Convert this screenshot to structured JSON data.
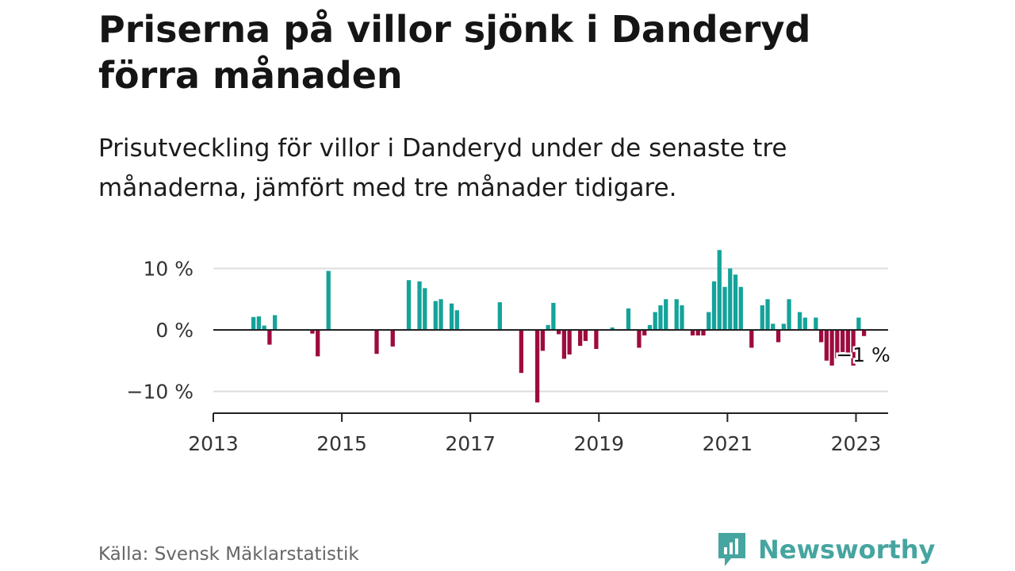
{
  "header": {
    "title": "Priserna på villor sjönk i Danderyd förra månaden",
    "subtitle": "Prisutveckling för villor i Danderyd under de senaste tre månaderna, jämfört med tre månader tidigare."
  },
  "footer": {
    "source": "Källa: Svensk Mäklarstatistik",
    "brand": "Newsworthy",
    "brand_icon": "chart-bubble-icon"
  },
  "colors": {
    "positive": "#14a39a",
    "negative": "#9e0b3e",
    "grid": "#dddddd",
    "axis": "#222222",
    "brand": "#46a5a0"
  },
  "chart_data": {
    "type": "bar",
    "title": "",
    "xlabel": "",
    "ylabel": "",
    "x_unit": "month",
    "ylim": [
      -13,
      13
    ],
    "xlim": [
      "2013-01",
      "2023-07"
    ],
    "yticks": [
      {
        "value": 10,
        "label": "10 %"
      },
      {
        "value": 0,
        "label": "0 %"
      },
      {
        "value": -10,
        "label": "−10 %"
      }
    ],
    "xticks": [
      {
        "x": "2013-01",
        "label": "2013"
      },
      {
        "x": "2015-01",
        "label": "2015"
      },
      {
        "x": "2017-01",
        "label": "2017"
      },
      {
        "x": "2019-01",
        "label": "2019"
      },
      {
        "x": "2021-01",
        "label": "2021"
      },
      {
        "x": "2023-01",
        "label": "2023"
      }
    ],
    "grid": true,
    "annotation": {
      "x": "2023-02",
      "value": -1,
      "label": "−1 %"
    },
    "points": [
      {
        "x": "2013-08",
        "value": 2.1
      },
      {
        "x": "2013-09",
        "value": 2.2
      },
      {
        "x": "2013-10",
        "value": 0.7
      },
      {
        "x": "2013-11",
        "value": -2.4
      },
      {
        "x": "2013-12",
        "value": 2.4
      },
      {
        "x": "2014-07",
        "value": -0.6
      },
      {
        "x": "2014-08",
        "value": -4.3
      },
      {
        "x": "2014-10",
        "value": 9.6
      },
      {
        "x": "2015-07",
        "value": -3.9
      },
      {
        "x": "2015-10",
        "value": -2.7
      },
      {
        "x": "2016-01",
        "value": 8.1
      },
      {
        "x": "2016-03",
        "value": 7.9
      },
      {
        "x": "2016-04",
        "value": 6.8
      },
      {
        "x": "2016-06",
        "value": 4.7
      },
      {
        "x": "2016-07",
        "value": 5.0
      },
      {
        "x": "2016-09",
        "value": 4.3
      },
      {
        "x": "2016-10",
        "value": 3.2
      },
      {
        "x": "2017-06",
        "value": 4.5
      },
      {
        "x": "2017-10",
        "value": -7.0
      },
      {
        "x": "2018-01",
        "value": -11.8
      },
      {
        "x": "2018-02",
        "value": -3.4
      },
      {
        "x": "2018-03",
        "value": 0.8
      },
      {
        "x": "2018-04",
        "value": 4.4
      },
      {
        "x": "2018-05",
        "value": -0.7
      },
      {
        "x": "2018-06",
        "value": -4.7
      },
      {
        "x": "2018-07",
        "value": -4.0
      },
      {
        "x": "2018-09",
        "value": -2.6
      },
      {
        "x": "2018-10",
        "value": -1.8
      },
      {
        "x": "2018-12",
        "value": -3.1
      },
      {
        "x": "2019-03",
        "value": 0.4
      },
      {
        "x": "2019-06",
        "value": 3.5
      },
      {
        "x": "2019-08",
        "value": -2.9
      },
      {
        "x": "2019-09",
        "value": -0.9
      },
      {
        "x": "2019-10",
        "value": 0.8
      },
      {
        "x": "2019-11",
        "value": 2.9
      },
      {
        "x": "2019-12",
        "value": 4.0
      },
      {
        "x": "2020-01",
        "value": 5.0
      },
      {
        "x": "2020-03",
        "value": 5.0
      },
      {
        "x": "2020-04",
        "value": 4.0
      },
      {
        "x": "2020-06",
        "value": -0.9
      },
      {
        "x": "2020-07",
        "value": -0.9
      },
      {
        "x": "2020-08",
        "value": -0.9
      },
      {
        "x": "2020-09",
        "value": 2.9
      },
      {
        "x": "2020-10",
        "value": 7.9
      },
      {
        "x": "2020-11",
        "value": 13.0
      },
      {
        "x": "2020-12",
        "value": 7.0
      },
      {
        "x": "2021-01",
        "value": 10.0
      },
      {
        "x": "2021-02",
        "value": 9.0
      },
      {
        "x": "2021-03",
        "value": 7.0
      },
      {
        "x": "2021-05",
        "value": -2.9
      },
      {
        "x": "2021-07",
        "value": 4.0
      },
      {
        "x": "2021-08",
        "value": 5.0
      },
      {
        "x": "2021-09",
        "value": 1.0
      },
      {
        "x": "2021-10",
        "value": -2.0
      },
      {
        "x": "2021-11",
        "value": 1.0
      },
      {
        "x": "2021-12",
        "value": 5.0
      },
      {
        "x": "2022-02",
        "value": 2.9
      },
      {
        "x": "2022-03",
        "value": 2.0
      },
      {
        "x": "2022-05",
        "value": 2.0
      },
      {
        "x": "2022-06",
        "value": -2.0
      },
      {
        "x": "2022-07",
        "value": -5.0
      },
      {
        "x": "2022-08",
        "value": -5.8
      },
      {
        "x": "2022-09",
        "value": -4.6
      },
      {
        "x": "2022-10",
        "value": -3.6
      },
      {
        "x": "2022-11",
        "value": -4.0
      },
      {
        "x": "2022-12",
        "value": -5.8
      },
      {
        "x": "2023-01",
        "value": 2.0
      },
      {
        "x": "2023-02",
        "value": -1.0
      }
    ]
  }
}
